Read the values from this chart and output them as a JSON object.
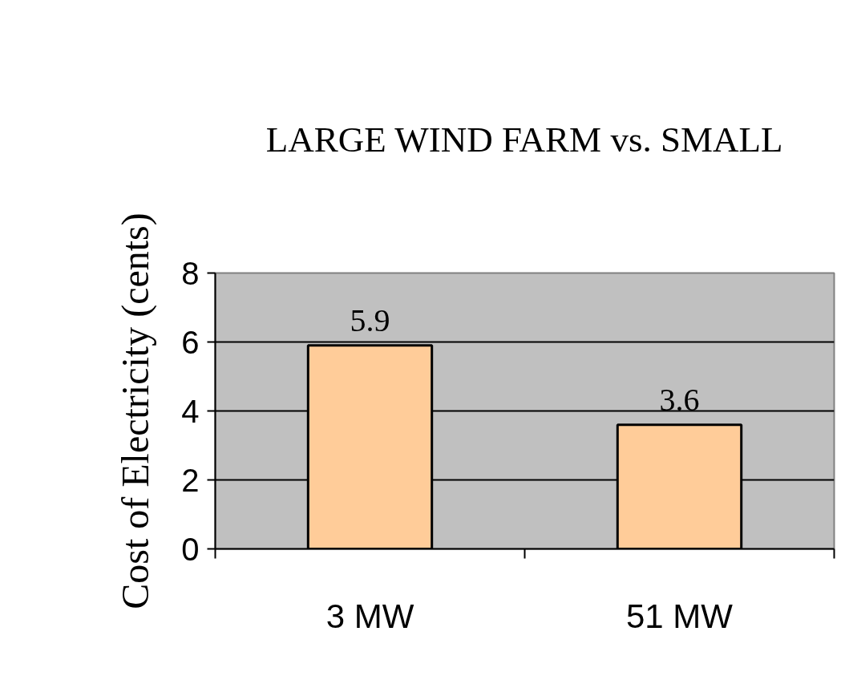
{
  "chart_data": {
    "type": "bar",
    "title": "LARGE WIND FARM vs. SMALL",
    "ylabel": "Cost of Electricity (cents)",
    "categories": [
      "3 MW",
      "51 MW"
    ],
    "values": [
      5.9,
      3.6
    ],
    "color": "#ffcc99",
    "ylim": [
      0,
      8
    ],
    "yticks": [
      0,
      2,
      4,
      6,
      8
    ],
    "grid": "y",
    "data_labels": true
  }
}
